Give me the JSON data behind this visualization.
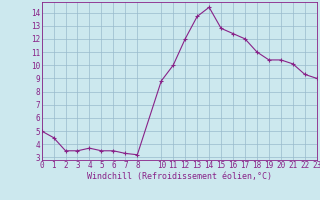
{
  "x": [
    0,
    1,
    2,
    3,
    4,
    5,
    6,
    7,
    8,
    10,
    11,
    12,
    13,
    14,
    15,
    16,
    17,
    18,
    19,
    20,
    21,
    22,
    23
  ],
  "y": [
    5.0,
    4.5,
    3.5,
    3.5,
    3.7,
    3.5,
    3.5,
    3.3,
    3.2,
    8.8,
    10.0,
    12.0,
    13.7,
    14.4,
    12.8,
    12.4,
    12.0,
    11.0,
    10.4,
    10.4,
    10.1,
    9.3,
    9.0
  ],
  "line_color": "#882288",
  "marker": "+",
  "marker_size": 3.5,
  "bg_color": "#cce8ee",
  "grid_color": "#99bbcc",
  "xlabel": "Windchill (Refroidissement éolien,°C)",
  "xlim": [
    0,
    23
  ],
  "ylim": [
    2.8,
    14.8
  ],
  "xticks": [
    0,
    1,
    2,
    3,
    4,
    5,
    6,
    7,
    8,
    10,
    11,
    12,
    13,
    14,
    15,
    16,
    17,
    18,
    19,
    20,
    21,
    22,
    23
  ],
  "yticks": [
    3,
    4,
    5,
    6,
    7,
    8,
    9,
    10,
    11,
    12,
    13,
    14
  ],
  "tick_fontsize": 5.5,
  "xlabel_fontsize": 6.0
}
